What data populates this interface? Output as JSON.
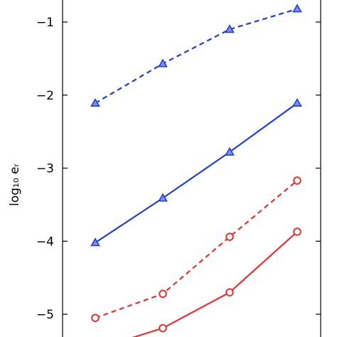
{
  "chart_data": {
    "type": "line",
    "ylabel": "log₁₀ eᵣ",
    "ylim": [
      -5.4,
      -0.7
    ],
    "yticks": [
      -1,
      -2,
      -3,
      -4,
      -5
    ],
    "ytick_labels": [
      "−1",
      "−2",
      "−3",
      "−4",
      "−5"
    ],
    "x": [
      1,
      2,
      3,
      4
    ],
    "grid": false,
    "series": [
      {
        "color": "#1f3fd6",
        "dash": true,
        "marker": "triangle",
        "values": [
          -2.11,
          -1.57,
          -1.1,
          -0.82
        ]
      },
      {
        "color": "#1f3fd6",
        "dash": false,
        "marker": "triangle",
        "values": [
          -4.02,
          -3.41,
          -2.78,
          -2.11
        ]
      },
      {
        "color": "#e8322f",
        "dash": true,
        "marker": "circle",
        "values": [
          -5.05,
          -4.72,
          -3.94,
          -3.17
        ]
      },
      {
        "color": "#e8322f",
        "dash": false,
        "marker": "circle",
        "values": [
          -5.48,
          -5.19,
          -4.7,
          -3.87
        ]
      }
    ]
  }
}
